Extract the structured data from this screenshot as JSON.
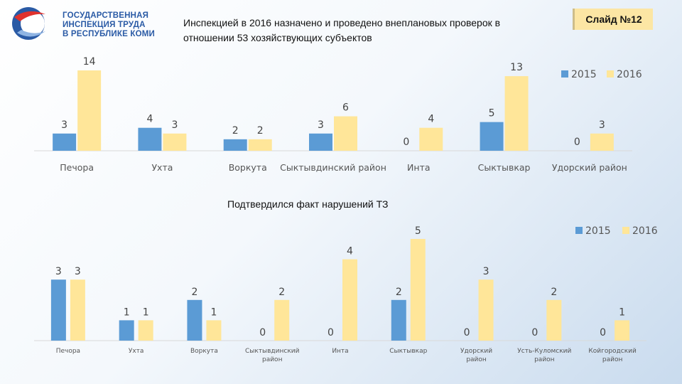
{
  "header": {
    "org_line1": "ГОСУДАРСТВЕННАЯ",
    "org_line2": "ИНСПЕКЦИЯ ТРУДА",
    "org_line3": "В РЕСПУБЛИКЕ КОМИ",
    "title": "Инспекцией в 2016 назначено и проведено внеплановых проверок в отношении 53 хозяйствующих субъектов",
    "slide_label": "Слайд №12"
  },
  "colors": {
    "series_2015": "#5b9bd5",
    "series_2016": "#ffe699",
    "logo_blue": "#2a5aa5",
    "logo_red": "#e0322d"
  },
  "chart_data": [
    {
      "type": "bar",
      "title": "",
      "categories": [
        "Печора",
        "Ухта",
        "Воркута",
        "Сыктывдинский район",
        "Инта",
        "Сыктывкар",
        "Удорский район"
      ],
      "series": [
        {
          "name": "2015",
          "values": [
            3,
            4,
            2,
            3,
            0,
            5,
            0
          ]
        },
        {
          "name": "2016",
          "values": [
            14,
            3,
            2,
            6,
            4,
            13,
            3
          ]
        }
      ],
      "ylim": [
        0,
        14
      ],
      "legend": "top-right",
      "grid": false
    },
    {
      "type": "bar",
      "title": "Подтвердился факт нарушений ТЗ",
      "categories": [
        "Печора",
        "Ухта",
        "Воркута",
        "Сыктывдинский район",
        "Инта",
        "Сыктывкар",
        "Удорский район",
        "Усть-Куломский район",
        "Койгородский район"
      ],
      "series": [
        {
          "name": "2015",
          "values": [
            3,
            1,
            2,
            0,
            0,
            2,
            0,
            0,
            0
          ]
        },
        {
          "name": "2016",
          "values": [
            3,
            1,
            1,
            2,
            4,
            5,
            3,
            2,
            1
          ]
        }
      ],
      "ylim": [
        0,
        5
      ],
      "legend": "top-right",
      "grid": false
    }
  ]
}
